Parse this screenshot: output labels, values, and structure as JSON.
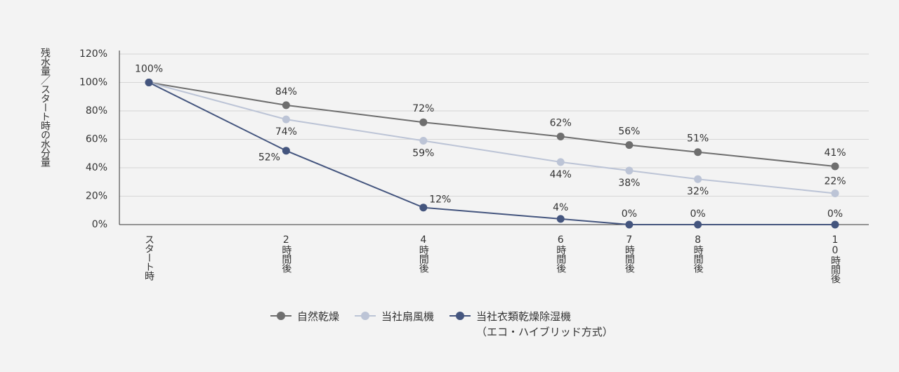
{
  "chart_data": {
    "type": "line",
    "y_label": "残水量／スタート時の水分量",
    "x": [
      {
        "value": 0,
        "label": "スタート時"
      },
      {
        "value": 2,
        "label": "2時間後"
      },
      {
        "value": 4,
        "label": "4時間後"
      },
      {
        "value": 6,
        "label": "6時間後"
      },
      {
        "value": 7,
        "label": "7時間後"
      },
      {
        "value": 8,
        "label": "8時間後"
      },
      {
        "value": 10,
        "label": "10時間後"
      }
    ],
    "xlim": [
      0,
      10
    ],
    "ylim": [
      0,
      120
    ],
    "yticks": [
      {
        "value": 0,
        "label": "0%"
      },
      {
        "value": 20,
        "label": "20%"
      },
      {
        "value": 40,
        "label": "40%"
      },
      {
        "value": 60,
        "label": "60%"
      },
      {
        "value": 80,
        "label": "80%"
      },
      {
        "value": 100,
        "label": "100%"
      },
      {
        "value": 120,
        "label": "120%"
      }
    ],
    "grid": true,
    "series": [
      {
        "name": "自然乾燥",
        "color": "#6e6e6e",
        "values": [
          100,
          84,
          72,
          62,
          56,
          51,
          41
        ],
        "value_labels": [
          "100%",
          "84%",
          "72%",
          "62%",
          "56%",
          "51%",
          "41%"
        ]
      },
      {
        "name": "当社扇風機",
        "color": "#bcc4d6",
        "values": [
          100,
          74,
          59,
          44,
          38,
          32,
          22
        ],
        "value_labels": [
          null,
          "74%",
          "59%",
          "44%",
          "38%",
          "32%",
          "22%"
        ]
      },
      {
        "name": "当社衣類乾燥除湿機\n（エコ・ハイブリッド方式）",
        "color": "#44557e",
        "values": [
          100,
          52,
          12,
          4,
          0,
          0,
          0
        ],
        "value_labels": [
          null,
          "52%",
          "12%",
          "4%",
          "0%",
          "0%",
          "0%"
        ]
      }
    ]
  }
}
